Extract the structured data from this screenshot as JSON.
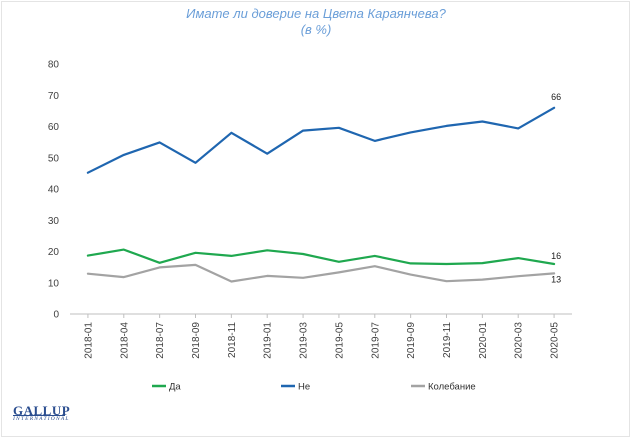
{
  "header": {
    "title": "Имате ли доверие на Цвета Караянчева?",
    "subtitle": "(в %)"
  },
  "logo": {
    "main": "GALLUP",
    "sub": "INTERNATIONAL"
  },
  "chart_data": {
    "type": "line",
    "title": "Имате ли доверие на Цвета Караянчева?",
    "subtitle": "(в %)",
    "xlabel": "",
    "ylabel": "",
    "ylim": [
      0,
      80
    ],
    "yticks": [
      0,
      10,
      20,
      30,
      40,
      50,
      60,
      70,
      80
    ],
    "grid": false,
    "legend_position": "bottom",
    "categories": [
      "2018-01",
      "2018-04",
      "2018-07",
      "2018-09",
      "2018-11",
      "2019-01",
      "2019-03",
      "2019-05",
      "2019-07",
      "2019-09",
      "2019-11",
      "2020-01",
      "2020-03",
      "2020-05"
    ],
    "series": [
      {
        "name": "Да",
        "color": "#1fa84f",
        "values": [
          18.7,
          20.6,
          16.4,
          19.6,
          18.6,
          20.4,
          19.2,
          16.7,
          18.6,
          16.2,
          16.0,
          16.3,
          17.9,
          16
        ],
        "end_label": "16"
      },
      {
        "name": "Не",
        "color": "#1f66b0",
        "values": [
          45.2,
          50.9,
          54.9,
          48.4,
          58.0,
          51.3,
          58.7,
          59.6,
          55.4,
          58.1,
          60.2,
          61.6,
          59.4,
          66
        ],
        "end_label": "66"
      },
      {
        "name": "Колебание",
        "color": "#a3a3a3",
        "values": [
          12.9,
          11.8,
          14.9,
          15.7,
          10.4,
          12.2,
          11.6,
          13.3,
          15.3,
          12.6,
          10.5,
          11.0,
          12.1,
          13
        ],
        "end_label": "13"
      }
    ]
  }
}
